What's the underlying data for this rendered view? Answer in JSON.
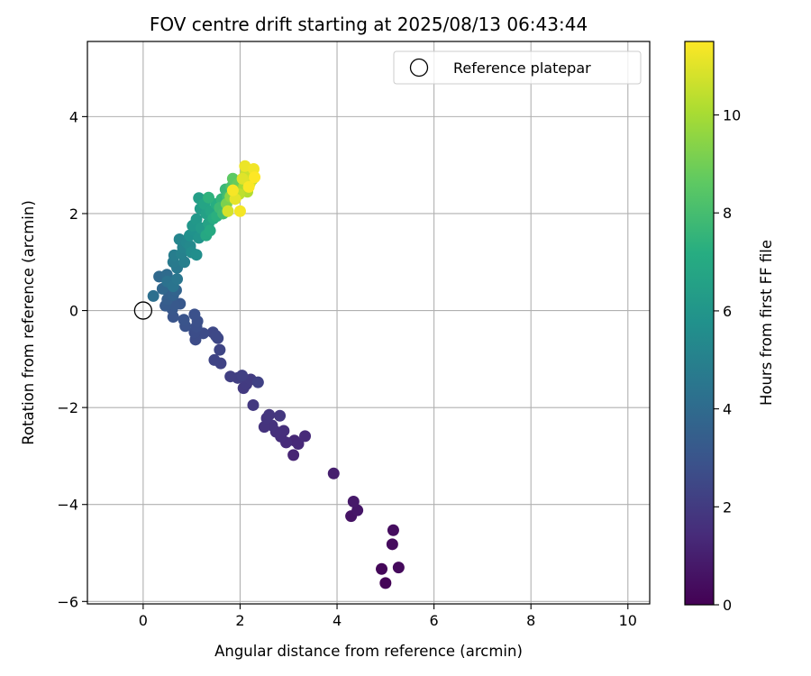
{
  "chart_data": {
    "type": "scatter",
    "title": "FOV centre drift starting at 2025/08/13 06:43:44",
    "xlabel": "Angular distance from reference (arcmin)",
    "ylabel": "Rotation from reference (arcmin)",
    "xlim": [
      -1.15,
      10.45
    ],
    "ylim": [
      -6.05,
      5.55
    ],
    "xticks": [
      0,
      2,
      4,
      6,
      8,
      10
    ],
    "yticks": [
      -6,
      -4,
      -2,
      0,
      2,
      4
    ],
    "xtick_labels": [
      "0",
      "2",
      "4",
      "6",
      "8",
      "10"
    ],
    "ytick_labels": [
      "−6",
      "−4",
      "−2",
      "0",
      "2",
      "4"
    ],
    "grid": true,
    "legend": {
      "position": "top-right",
      "entries": [
        "Reference platepar"
      ]
    },
    "colormap": "viridis",
    "colorbar": {
      "label": "Hours from first FF file",
      "range": [
        0,
        11.5
      ],
      "ticks": [
        0,
        2,
        4,
        6,
        8,
        10
      ],
      "tick_labels": [
        "0",
        "2",
        "4",
        "6",
        "8",
        "10"
      ]
    },
    "reference_point": {
      "x": 0,
      "y": 0,
      "label": "Reference platepar"
    },
    "series": [
      {
        "points": [
          {
            "x": 5.0,
            "y": -5.62,
            "c": 0.1
          },
          {
            "x": 4.92,
            "y": -5.33,
            "c": 0.2
          },
          {
            "x": 5.27,
            "y": -5.3,
            "c": 0.3
          },
          {
            "x": 5.14,
            "y": -4.82,
            "c": 0.35
          },
          {
            "x": 5.16,
            "y": -4.53,
            "c": 0.4
          },
          {
            "x": 4.29,
            "y": -4.24,
            "c": 0.6
          },
          {
            "x": 4.42,
            "y": -4.12,
            "c": 0.7
          },
          {
            "x": 4.34,
            "y": -3.94,
            "c": 0.8
          },
          {
            "x": 3.93,
            "y": -3.36,
            "c": 1.0
          },
          {
            "x": 3.1,
            "y": -2.98,
            "c": 1.2
          },
          {
            "x": 3.12,
            "y": -2.68,
            "c": 1.3
          },
          {
            "x": 3.2,
            "y": -2.75,
            "c": 1.35
          },
          {
            "x": 3.34,
            "y": -2.59,
            "c": 1.4
          },
          {
            "x": 2.95,
            "y": -2.72,
            "c": 1.45
          },
          {
            "x": 2.84,
            "y": -2.6,
            "c": 1.5
          },
          {
            "x": 2.9,
            "y": -2.48,
            "c": 1.55
          },
          {
            "x": 2.74,
            "y": -2.5,
            "c": 1.6
          },
          {
            "x": 2.66,
            "y": -2.37,
            "c": 1.65
          },
          {
            "x": 2.5,
            "y": -2.4,
            "c": 1.7
          },
          {
            "x": 2.55,
            "y": -2.22,
            "c": 1.75
          },
          {
            "x": 2.6,
            "y": -2.15,
            "c": 1.8
          },
          {
            "x": 2.82,
            "y": -2.17,
            "c": 1.85
          },
          {
            "x": 2.27,
            "y": -1.95,
            "c": 1.9
          },
          {
            "x": 2.07,
            "y": -1.6,
            "c": 1.95
          },
          {
            "x": 2.13,
            "y": -1.52,
            "c": 2.0
          },
          {
            "x": 2.22,
            "y": -1.42,
            "c": 2.05
          },
          {
            "x": 1.95,
            "y": -1.39,
            "c": 2.1
          },
          {
            "x": 1.8,
            "y": -1.36,
            "c": 2.15
          },
          {
            "x": 2.04,
            "y": -1.34,
            "c": 2.2
          },
          {
            "x": 2.37,
            "y": -1.48,
            "c": 2.25
          },
          {
            "x": 1.6,
            "y": -1.09,
            "c": 2.3
          },
          {
            "x": 1.47,
            "y": -1.02,
            "c": 2.35
          },
          {
            "x": 1.58,
            "y": -0.81,
            "c": 2.4
          },
          {
            "x": 1.54,
            "y": -0.57,
            "c": 2.45
          },
          {
            "x": 1.44,
            "y": -0.45,
            "c": 2.5
          },
          {
            "x": 1.5,
            "y": -0.52,
            "c": 2.55
          },
          {
            "x": 1.24,
            "y": -0.47,
            "c": 2.6
          },
          {
            "x": 1.08,
            "y": -0.6,
            "c": 2.65
          },
          {
            "x": 1.06,
            "y": -0.45,
            "c": 2.7
          },
          {
            "x": 1.1,
            "y": -0.33,
            "c": 2.75
          },
          {
            "x": 1.12,
            "y": -0.22,
            "c": 2.8
          },
          {
            "x": 1.06,
            "y": -0.08,
            "c": 2.85
          },
          {
            "x": 0.87,
            "y": -0.32,
            "c": 2.9
          },
          {
            "x": 0.84,
            "y": -0.19,
            "c": 2.95
          },
          {
            "x": 0.62,
            "y": -0.13,
            "c": 3.0
          },
          {
            "x": 0.6,
            "y": 0.03,
            "c": 3.1
          },
          {
            "x": 0.76,
            "y": 0.14,
            "c": 3.15
          },
          {
            "x": 0.64,
            "y": 0.12,
            "c": 3.2
          },
          {
            "x": 0.46,
            "y": 0.1,
            "c": 3.3
          },
          {
            "x": 0.5,
            "y": 0.23,
            "c": 3.4
          },
          {
            "x": 0.54,
            "y": 0.33,
            "c": 3.5
          },
          {
            "x": 0.62,
            "y": 0.32,
            "c": 3.6
          },
          {
            "x": 0.68,
            "y": 0.42,
            "c": 3.7
          },
          {
            "x": 0.4,
            "y": 0.45,
            "c": 3.8
          },
          {
            "x": 0.33,
            "y": 0.7,
            "c": 3.9
          },
          {
            "x": 0.49,
            "y": 0.74,
            "c": 4.0
          },
          {
            "x": 0.56,
            "y": 0.58,
            "c": 4.1
          },
          {
            "x": 0.21,
            "y": 0.3,
            "c": 4.2
          },
          {
            "x": 0.5,
            "y": 0.6,
            "c": 4.3
          },
          {
            "x": 0.62,
            "y": 0.5,
            "c": 4.4
          },
          {
            "x": 0.7,
            "y": 0.65,
            "c": 4.5
          },
          {
            "x": 0.7,
            "y": 0.88,
            "c": 4.6
          },
          {
            "x": 0.62,
            "y": 1.0,
            "c": 4.7
          },
          {
            "x": 0.64,
            "y": 1.14,
            "c": 4.8
          },
          {
            "x": 0.85,
            "y": 1.0,
            "c": 4.9
          },
          {
            "x": 0.79,
            "y": 1.17,
            "c": 5.0
          },
          {
            "x": 0.82,
            "y": 1.3,
            "c": 5.1
          },
          {
            "x": 0.75,
            "y": 1.47,
            "c": 5.2
          },
          {
            "x": 0.9,
            "y": 1.4,
            "c": 5.3
          },
          {
            "x": 0.97,
            "y": 1.33,
            "c": 5.4
          },
          {
            "x": 1.0,
            "y": 1.2,
            "c": 5.5
          },
          {
            "x": 1.1,
            "y": 1.15,
            "c": 5.6
          },
          {
            "x": 0.96,
            "y": 1.55,
            "c": 5.7
          },
          {
            "x": 1.05,
            "y": 1.65,
            "c": 5.8
          },
          {
            "x": 1.15,
            "y": 1.5,
            "c": 5.9
          },
          {
            "x": 1.02,
            "y": 1.75,
            "c": 6.0
          },
          {
            "x": 1.1,
            "y": 1.88,
            "c": 6.1
          },
          {
            "x": 1.2,
            "y": 1.7,
            "c": 6.2
          },
          {
            "x": 1.18,
            "y": 2.1,
            "c": 6.3
          },
          {
            "x": 1.15,
            "y": 2.32,
            "c": 6.4
          },
          {
            "x": 1.3,
            "y": 2.0,
            "c": 6.5
          },
          {
            "x": 1.35,
            "y": 1.8,
            "c": 6.6
          },
          {
            "x": 1.26,
            "y": 2.2,
            "c": 6.7
          },
          {
            "x": 1.4,
            "y": 2.05,
            "c": 6.8
          },
          {
            "x": 1.3,
            "y": 1.55,
            "c": 6.9
          },
          {
            "x": 1.38,
            "y": 1.65,
            "c": 7.0
          },
          {
            "x": 1.45,
            "y": 1.9,
            "c": 7.1
          },
          {
            "x": 1.5,
            "y": 2.2,
            "c": 7.2
          },
          {
            "x": 1.52,
            "y": 1.95,
            "c": 7.3
          },
          {
            "x": 1.35,
            "y": 2.33,
            "c": 7.4
          },
          {
            "x": 1.62,
            "y": 2.3,
            "c": 7.5
          },
          {
            "x": 1.7,
            "y": 2.5,
            "c": 7.7
          },
          {
            "x": 1.58,
            "y": 2.12,
            "c": 7.8
          },
          {
            "x": 1.65,
            "y": 2.0,
            "c": 7.9
          },
          {
            "x": 1.75,
            "y": 2.35,
            "c": 8.0
          },
          {
            "x": 1.82,
            "y": 2.55,
            "c": 8.2
          },
          {
            "x": 1.9,
            "y": 2.65,
            "c": 8.4
          },
          {
            "x": 1.85,
            "y": 2.72,
            "c": 8.6
          },
          {
            "x": 1.95,
            "y": 2.6,
            "c": 8.8
          },
          {
            "x": 2.0,
            "y": 2.5,
            "c": 9.0
          },
          {
            "x": 1.72,
            "y": 2.2,
            "c": 9.2
          },
          {
            "x": 1.8,
            "y": 2.35,
            "c": 9.5
          },
          {
            "x": 2.25,
            "y": 2.7,
            "c": 9.8
          },
          {
            "x": 2.08,
            "y": 2.55,
            "c": 10.0
          },
          {
            "x": 2.15,
            "y": 2.45,
            "c": 10.2
          },
          {
            "x": 1.98,
            "y": 2.4,
            "c": 10.4
          },
          {
            "x": 2.12,
            "y": 2.85,
            "c": 10.6
          },
          {
            "x": 1.75,
            "y": 2.05,
            "c": 10.8
          },
          {
            "x": 2.2,
            "y": 2.62,
            "c": 10.9
          },
          {
            "x": 2.05,
            "y": 2.72,
            "c": 11.0
          },
          {
            "x": 1.9,
            "y": 2.3,
            "c": 11.1
          },
          {
            "x": 2.1,
            "y": 2.98,
            "c": 11.2
          },
          {
            "x": 2.28,
            "y": 2.92,
            "c": 11.3
          },
          {
            "x": 2.0,
            "y": 2.05,
            "c": 11.35
          },
          {
            "x": 1.85,
            "y": 2.48,
            "c": 11.4
          },
          {
            "x": 2.18,
            "y": 2.55,
            "c": 11.45
          },
          {
            "x": 2.3,
            "y": 2.75,
            "c": 11.5
          }
        ]
      }
    ]
  }
}
